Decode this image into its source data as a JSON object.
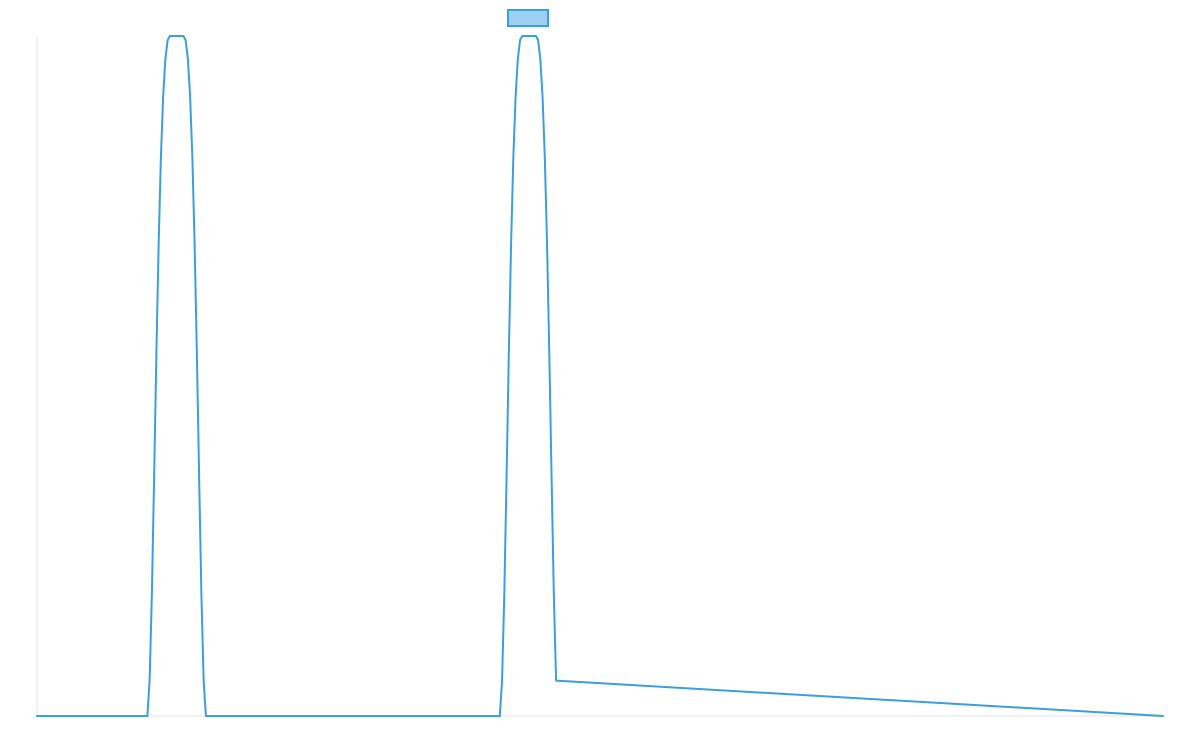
{
  "chart_data": {
    "type": "line",
    "title": "",
    "xlabel": "",
    "ylabel": "",
    "legend": {
      "placement": "top-center",
      "entries": [
        {
          "name": ""
        }
      ]
    },
    "grid": false,
    "xlim": [
      0,
      1000
    ],
    "ylim": [
      0,
      1
    ],
    "series": [
      {
        "name": "",
        "color": "#3b9fdb",
        "fill": "#9dd1f4",
        "x": [
          0,
          98,
          100,
          102,
          104,
          106,
          108,
          110,
          112,
          114,
          116,
          118,
          130,
          132,
          134,
          136,
          138,
          140,
          142,
          144,
          146,
          148,
          150,
          411,
          413,
          415,
          417,
          419,
          421,
          423,
          425,
          427,
          429,
          431,
          443,
          445,
          447,
          449,
          451,
          453,
          455,
          457,
          459,
          461,
          1000
        ],
        "y": [
          0,
          0,
          0.052,
          0.178,
          0.35,
          0.531,
          0.692,
          0.82,
          0.91,
          0.966,
          0.994,
          1,
          1,
          0.994,
          0.966,
          0.91,
          0.82,
          0.692,
          0.531,
          0.35,
          0.178,
          0.052,
          0,
          0,
          0.052,
          0.178,
          0.35,
          0.531,
          0.692,
          0.82,
          0.91,
          0.966,
          0.994,
          1,
          1,
          0.994,
          0.966,
          0.91,
          0.82,
          0.692,
          0.531,
          0.35,
          0.178,
          0.052,
          0
        ]
      }
    ]
  }
}
